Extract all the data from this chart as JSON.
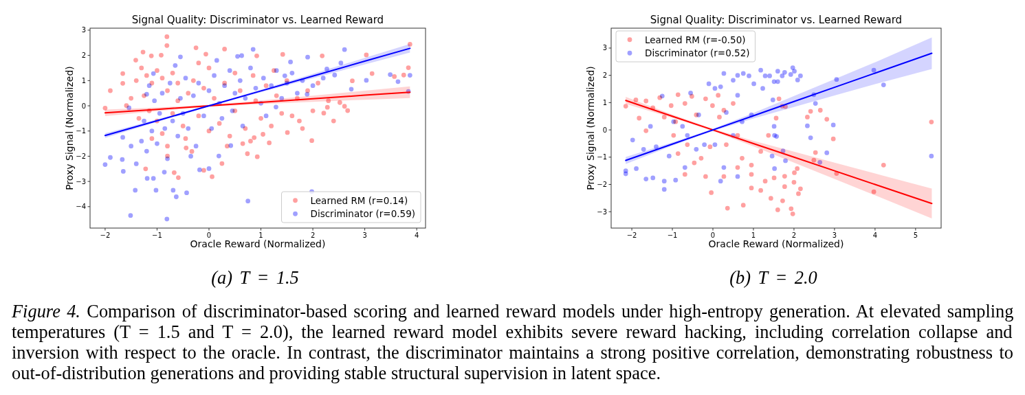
{
  "chart_data": [
    {
      "type": "scatter",
      "title": "Signal Quality: Discriminator vs. Learned Reward",
      "xlabel": "Oracle Reward (Normalized)",
      "ylabel": "Proxy Signal (Normalized)",
      "xlim": [
        -2.29,
        4.17
      ],
      "ylim": [
        -4.85,
        3.08
      ],
      "xticks": [
        -2,
        -1,
        0,
        1,
        2,
        3,
        4
      ],
      "yticks": [
        -4,
        -3,
        -2,
        -1,
        0,
        1,
        2,
        3
      ],
      "legend": "bottom right",
      "annotations": [
        "(a) T = 1.5"
      ],
      "series": [
        {
          "name": "Learned RM (r=0.14)",
          "marker": "circle",
          "color": "#ffa0a0",
          "x": [
            -0.81,
            -0.81,
            -1.27,
            -1.11,
            -1.9,
            -2.0,
            -1.66,
            -1.66,
            -1.41,
            -0.25,
            -0.06,
            0.3,
            -1.22,
            -0.67,
            -0.59,
            0.06,
            -0.1,
            -0.33,
            0.25,
            -0.8,
            -0.44,
            -0.92,
            -1.59,
            3.87,
            3.84,
            1.42,
            0.92,
            2.18,
            3.03,
            1.98,
            0.93,
            1.16,
            2.67,
            2.61,
            2.28,
            3.57,
            3.75,
            3.14,
            2.76,
            2.21,
            1.51,
            1.74,
            1.04,
            0.74,
            0.87,
            2.52,
            -1.3,
            -1.2,
            -1.1,
            -1.0,
            -0.9,
            -0.8,
            -0.7,
            -0.6,
            -1.25,
            -1.15,
            -1.0,
            -0.9,
            -0.8,
            -0.7,
            -0.6,
            -0.5,
            -0.4,
            -0.3,
            -0.2,
            -0.1,
            0.0,
            0.1,
            0.2,
            0.3,
            0.4,
            0.5,
            0.6,
            0.7,
            0.8,
            0.9,
            1.0,
            1.1,
            1.2,
            1.3,
            1.4,
            1.5,
            1.6,
            1.7,
            1.8,
            1.9,
            2.0,
            2.1,
            2.3,
            2.4,
            -1.4,
            -1.5,
            -1.35,
            -1.1,
            -0.45,
            0.35,
            0.65,
            0.0,
            -0.2,
            0.5,
            0.85,
            1.25
          ],
          "values": [
            2.74,
            2.39,
            2.13,
            1.98,
            0.6,
            -0.09,
            1.28,
            0.89,
            1.81,
            2.3,
            2.05,
            2.25,
            -2.5,
            -2.65,
            -2.85,
            -2.81,
            -2.56,
            -1.81,
            -2.29,
            -1.99,
            -1.67,
            2.01,
            0.01,
            2.44,
            1.51,
            2.04,
            1.98,
            1.98,
            2.02,
            -1.38,
            -2.02,
            -1.47,
            -0.19,
            -0.02,
            -0.06,
            1.16,
            1.22,
            1.28,
            0.99,
            -0.29,
            -1.06,
            -0.6,
            -1.13,
            -1.9,
            -1.26,
            0.13,
            1.5,
            1.2,
            0.9,
            1.4,
            1.1,
            0.6,
            1.3,
            0.9,
            0.4,
            -0.2,
            -0.6,
            -1.1,
            -1.6,
            -0.3,
            0.2,
            -0.8,
            0.5,
            1.0,
            -0.4,
            0.7,
            -1.0,
            0.3,
            -0.7,
            0.9,
            -1.2,
            -0.2,
            0.6,
            -0.9,
            -1.4,
            0.2,
            -0.5,
            0.8,
            -0.8,
            0.4,
            -0.3,
            1.0,
            -0.4,
            0.3,
            -0.9,
            0.6,
            -0.2,
            0.9,
            0.2,
            -0.6,
            1.0,
            0.3,
            -0.5,
            -1.3,
            -1.3,
            -1.6,
            -1.5,
            1.5,
            1.7,
            1.3,
            1.2,
            1.4
          ]
        },
        {
          "name": "Discriminator (r=0.59)",
          "marker": "circle",
          "color": "#a0a0ff",
          "x": [
            -2.0,
            -1.9,
            -1.65,
            -1.51,
            -1.42,
            -1.19,
            -1.07,
            -1.02,
            -0.81,
            -0.69,
            -0.63,
            -0.43,
            0.75,
            0.0,
            -0.18,
            -0.86,
            -1.66,
            -1.67,
            0.85,
            -0.55,
            0.55,
            0.63,
            -1.54,
            -1.2,
            -1.07,
            0.19,
            0.42,
            2.61,
            1.9,
            1.57,
            3.49,
            3.64,
            3.87,
            3.03,
            3.84,
            2.74,
            2.54,
            1.98,
            2.27,
            2.42,
            1.46,
            1.89,
            1.29,
            -1.3,
            -1.25,
            -1.2,
            -1.1,
            -1.05,
            -1.0,
            -0.95,
            -0.9,
            -0.85,
            -0.8,
            -0.75,
            -0.7,
            -0.6,
            -0.55,
            -0.5,
            -0.45,
            -0.4,
            -0.3,
            -0.25,
            -0.2,
            -0.1,
            0.0,
            0.05,
            0.1,
            0.2,
            0.25,
            0.3,
            0.4,
            0.45,
            0.5,
            0.6,
            0.65,
            0.7,
            0.8,
            0.9,
            1.0,
            1.05,
            1.1,
            1.2,
            1.3,
            1.4,
            1.5,
            1.6,
            1.7,
            1.8,
            2.0,
            2.2,
            -1.4,
            -1.5,
            -1.15,
            -0.65,
            0.15,
            -0.35
          ],
          "values": [
            -2.33,
            -2.05,
            -2.6,
            -4.35,
            -3.35,
            -2.88,
            -2.88,
            -3.35,
            -4.49,
            -3.35,
            -3.61,
            -3.45,
            -3.78,
            -2.49,
            -2.54,
            -2.63,
            -1.25,
            -2.13,
            2.24,
            1.94,
            1.96,
            1.99,
            -0.08,
            0.46,
            1.28,
            -1.99,
            -1.58,
            2.23,
            1.93,
            1.74,
            1.24,
            0.96,
            1.21,
            1.01,
            0.57,
            0.66,
            1.7,
            -3.4,
            1.46,
            1.22,
            1.19,
            0.46,
            -0.05,
            -1.4,
            -0.6,
            -1.8,
            -1.0,
            0.2,
            -1.5,
            -0.3,
            0.5,
            -0.9,
            -2.1,
            0.9,
            -0.6,
            -1.2,
            0.3,
            -0.3,
            1.1,
            -0.9,
            0.4,
            -1.6,
            0.9,
            -0.4,
            0.6,
            -0.9,
            1.2,
            0.1,
            -0.5,
            0.8,
            1.4,
            -0.2,
            0.5,
            1.0,
            -0.8,
            0.3,
            1.5,
            0.7,
            0.1,
            1.1,
            -0.4,
            0.8,
            1.4,
            0.3,
            0.9,
            1.3,
            0.5,
            1.0,
            0.8,
            1.1,
            -2.3,
            -1.6,
            0.8,
            1.6,
            1.8,
            -2.0
          ]
        },
        {
          "type": "line",
          "color": "#ff0000",
          "x": [
            -2,
            -1,
            0,
            1,
            2,
            3,
            3.87
          ],
          "values": [
            -0.28,
            -0.14,
            0,
            0.14,
            0.28,
            0.42,
            0.54
          ],
          "lower": [
            -0.41,
            -0.21,
            -0.04,
            0.07,
            0.16,
            0.24,
            0.31
          ],
          "upper": [
            -0.15,
            -0.07,
            0.04,
            0.21,
            0.4,
            0.6,
            0.77
          ]
        },
        {
          "type": "line",
          "color": "#0000ff",
          "x": [
            -2,
            -1,
            0,
            1,
            2,
            3,
            3.87
          ],
          "values": [
            -1.18,
            -0.59,
            0,
            0.59,
            1.18,
            1.77,
            2.28
          ],
          "lower": [
            -1.27,
            -0.64,
            -0.03,
            0.54,
            1.09,
            1.64,
            2.11
          ],
          "upper": [
            -1.09,
            -0.54,
            0.03,
            0.64,
            1.27,
            1.9,
            2.45
          ]
        }
      ]
    },
    {
      "type": "scatter",
      "title": "Signal Quality: Discriminator vs. Learned Reward",
      "xlabel": "Oracle Reward (Normalized)",
      "ylabel": "Proxy Signal (Normalized)",
      "xlim": [
        -2.51,
        5.63
      ],
      "ylim": [
        -3.6,
        3.73
      ],
      "xticks": [
        -2,
        -1,
        0,
        1,
        2,
        3,
        4,
        5
      ],
      "yticks": [
        -3,
        -2,
        -1,
        0,
        1,
        2,
        3
      ],
      "legend": "top left",
      "annotations": [
        "(b) T = 2.0",
        "Figure 4. Comparison of discriminator-based scoring and learned reward models under high-entropy generation. At elevated sampling temperatures (T = 1.5 and T = 2.0), the learned reward model exhibits severe reward hacking, including correlation collapse and inversion with respect to the oracle. In contrast, the discriminator maintains a strong positive correlation, demonstrating robustness to out-of-distribution generations and providing stable structural supervision in latent space."
      ],
      "series": [
        {
          "name": "Learned RM (r=-0.50)",
          "marker": "circle",
          "color": "#ffa0a0",
          "x": [
            -2.15,
            -1.9,
            -1.65,
            -1.48,
            -1.82,
            -1.31,
            -1.03,
            -0.86,
            -0.69,
            -0.52,
            -1.2,
            -0.92,
            -0.41,
            -0.18,
            -0.01,
            0.13,
            0.27,
            0.5,
            0.16,
            0.61,
            0.33,
            0.72,
            0.95,
            0.61,
            -0.04,
            0.36,
            0.75,
            0.95,
            0.95,
            0.27,
            -0.18,
            -0.46,
            -0.69,
            -0.29,
            -0.07,
            1.18,
            1.37,
            1.29,
            1.18,
            1.43,
            1.51,
            -1.65,
            -0.97,
            -0.63,
            -0.86,
            5.39,
            4.21,
            3.97,
            3.05,
            2.97,
            2.81,
            2.65,
            2.41,
            2.33,
            2.53,
            2.49,
            2.16,
            2.11,
            1.93,
            1.97,
            1.6,
            1.72,
            1.77,
            2.01,
            2.08,
            1.77,
            1.56,
            1.79,
            1.71,
            1.63,
            2.0
          ],
          "values": [
            0.87,
            1.1,
            1.06,
            0.81,
            0.43,
            1.18,
            0.89,
            1.29,
            0.97,
            1.23,
            0.47,
            0.3,
            0.55,
            1.14,
            0.89,
            1.27,
            0.72,
            0.97,
            0.47,
            -0.2,
            -0.54,
            -1.04,
            -1.29,
            -1.38,
            -2.3,
            -2.87,
            -2.76,
            -2.13,
            -1.63,
            -1.71,
            -1.71,
            -1.21,
            -1.63,
            -1.04,
            -0.62,
            -0.79,
            -0.2,
            -1.88,
            -2.22,
            -2.51,
            -1.76,
            -0.03,
            -0.2,
            -0.54,
            -0.87,
            0.29,
            -1.29,
            -2.27,
            -1.6,
            -0.33,
            0.39,
            0.72,
            0.68,
            0.47,
            -0.83,
            -1.11,
            -2.16,
            -2.34,
            -2.89,
            -3.08,
            -2.93,
            -2.6,
            -2.08,
            -1.57,
            -1.42,
            -1.7,
            0.43,
            0.85,
            0.87,
            1.14,
            -1.92
          ]
        },
        {
          "name": "Discriminator (r=0.52)",
          "marker": "circle",
          "color": "#a0a0ff",
          "x": [
            -2.15,
            -2.15,
            -1.98,
            -1.89,
            -1.65,
            -1.48,
            -1.2,
            -1.2,
            -0.92,
            -1.4,
            -1.08,
            -1.25,
            -0.97,
            -0.75,
            -0.55,
            -0.35,
            -0.21,
            -0.1,
            0.05,
            0.19,
            0.27,
            0.5,
            0.61,
            0.75,
            0.89,
            1.01,
            1.18,
            1.29,
            1.23,
            1.4,
            0.61,
            0.33,
            0.72,
            0.95,
            0.5,
            0.05,
            0.27,
            0.61,
            0.19,
            -0.41,
            -0.63,
            -1.71,
            -1.54,
            1.46,
            1.51,
            -0.69,
            5.39,
            4.21,
            3.97,
            3.05,
            2.97,
            2.81,
            2.64,
            2.41,
            2.33,
            2.53,
            2.49,
            2.16,
            2.09,
            1.97,
            2.01,
            1.77,
            1.6,
            1.71,
            1.92,
            1.51,
            1.6,
            1.48,
            1.52,
            1.57,
            1.79,
            1.73,
            1.52
          ],
          "values": [
            -1.5,
            -1.61,
            -0.37,
            -1.42,
            -1.8,
            -1.76,
            -2.18,
            -1.88,
            -1.84,
            -0.62,
            -0.96,
            1.24,
            0.3,
            0.13,
            1.35,
            0.55,
            -0.54,
            1.69,
            1.52,
            1.58,
            2.07,
            1.82,
            2.0,
            2.07,
            1.98,
            1.69,
            2.19,
            1.98,
            1.52,
            1.98,
            1.27,
            0.64,
            0.3,
            0.55,
            -0.2,
            -0.54,
            -1.38,
            -1.71,
            -1.88,
            -0.71,
            -0.2,
            -0.71,
            0.13,
            -0.96,
            0.13,
            -1.38,
            -0.96,
            1.65,
            2.19,
            1.85,
            0.18,
            -0.84,
            -1.19,
            -0.29,
            0.15,
            0.97,
            1.29,
            1.98,
            1.83,
            2.28,
            2.15,
            2.11,
            2.15,
            1.98,
            2.03,
            1.77,
            1.77,
            1.1,
            -0.2,
            -0.24,
            -1.13,
            -0.77,
            -1.42
          ]
        },
        {
          "type": "line",
          "color": "#ff0000",
          "x": [
            -2.15,
            -1,
            0,
            1,
            2,
            3,
            4,
            5.4
          ],
          "values": [
            1.08,
            0.5,
            0,
            -0.5,
            -1.0,
            -1.5,
            -2.0,
            -2.7
          ],
          "lower": [
            0.95,
            0.44,
            -0.04,
            -0.6,
            -1.2,
            -1.8,
            -2.4,
            -3.25
          ],
          "upper": [
            1.21,
            0.56,
            0.04,
            -0.4,
            -0.8,
            -1.2,
            -1.6,
            -2.15
          ]
        },
        {
          "type": "line",
          "color": "#0000ff",
          "x": [
            -2.15,
            -1,
            0,
            1,
            2,
            3,
            4,
            5.4
          ],
          "values": [
            -1.12,
            -0.52,
            0,
            0.52,
            1.04,
            1.56,
            2.08,
            2.81
          ],
          "lower": [
            -1.25,
            -0.58,
            -0.04,
            0.42,
            0.84,
            1.26,
            1.68,
            2.23
          ],
          "upper": [
            -0.99,
            -0.46,
            0.04,
            0.62,
            1.24,
            1.86,
            2.48,
            3.39
          ]
        }
      ]
    }
  ]
}
